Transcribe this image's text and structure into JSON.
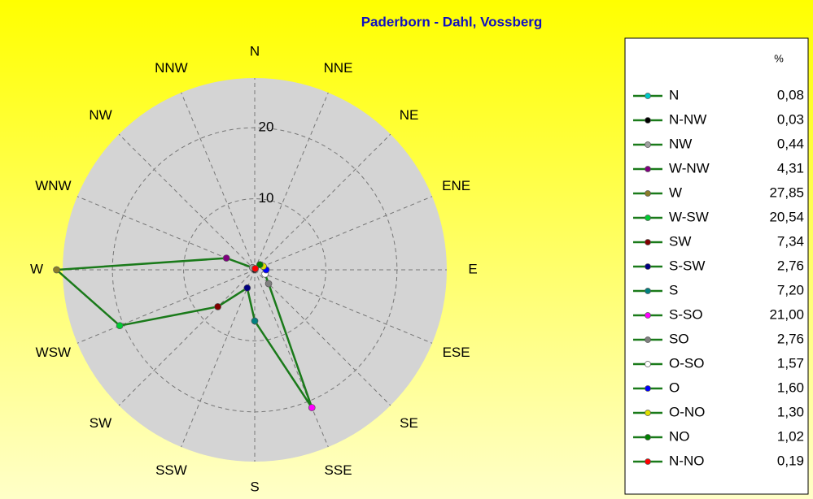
{
  "chart_data": {
    "type": "radar",
    "title": "Paderborn - Dahl, Vossberg",
    "directions": [
      "N",
      "NNE",
      "NE",
      "ENE",
      "E",
      "ESE",
      "SE",
      "SSE",
      "S",
      "SSW",
      "SW",
      "WSW",
      "W",
      "WNW",
      "NW",
      "NNW"
    ],
    "legend_title": "%",
    "categories": [
      "N",
      "N-NW",
      "NW",
      "W-NW",
      "W",
      "W-SW",
      "SW",
      "S-SW",
      "S",
      "S-SO",
      "SO",
      "O-SO",
      "O",
      "O-NO",
      "NO",
      "N-NO"
    ],
    "values": [
      0.08,
      0.03,
      0.44,
      4.31,
      27.85,
      20.54,
      7.34,
      2.76,
      7.2,
      21.0,
      2.76,
      1.57,
      1.6,
      1.3,
      1.02,
      0.19
    ],
    "value_labels": [
      "0,08",
      "0,03",
      "0,44",
      "4,31",
      "27,85",
      "20,54",
      "7,34",
      "2,76",
      "7,20",
      "21,00",
      "2,76",
      "1,57",
      "1,60",
      "1,30",
      "1,02",
      "0,19"
    ],
    "colors": [
      "#00c8c8",
      "#000000",
      "#a0a0a0",
      "#800080",
      "#8b7d2a",
      "#00cc33",
      "#800000",
      "#000080",
      "#008080",
      "#ff00ff",
      "#808080",
      "#ffffff",
      "#0000ff",
      "#e0e000",
      "#008000",
      "#ff0000"
    ],
    "line_color": "#1a7a1a",
    "rlim": [
      0,
      27
    ],
    "rticks": [
      10,
      20
    ]
  }
}
